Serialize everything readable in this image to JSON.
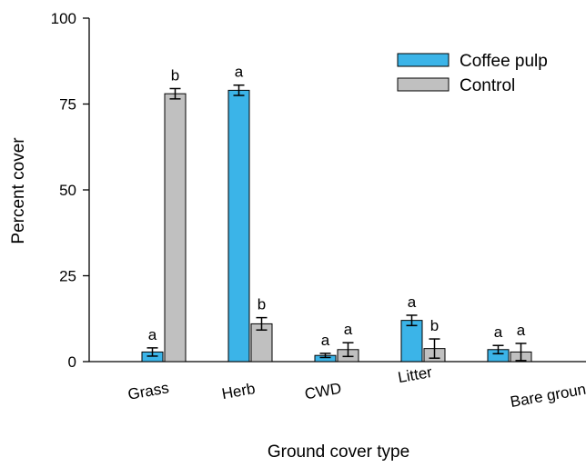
{
  "chart_data": {
    "type": "bar",
    "title": "",
    "xlabel": "Ground cover type",
    "ylabel": "Percent cover",
    "ylim": [
      0,
      100
    ],
    "yticks": [
      0,
      25,
      50,
      75,
      100
    ],
    "categories": [
      "Grass",
      "Herb",
      "CWD",
      "Litter",
      "Bare ground"
    ],
    "series": [
      {
        "name": "Coffee pulp",
        "color": "#3bb4e8",
        "values": [
          2.8,
          79,
          1.8,
          12,
          3.5
        ],
        "errors": [
          1.2,
          1.5,
          0.6,
          1.5,
          1.2
        ],
        "letters": [
          "a",
          "a",
          "a",
          "a",
          "a"
        ]
      },
      {
        "name": "Control",
        "color": "#c0c0c0",
        "values": [
          78,
          11,
          3.5,
          3.8,
          2.8
        ],
        "errors": [
          1.5,
          1.8,
          2.0,
          2.8,
          2.5
        ],
        "letters": [
          "b",
          "b",
          "a",
          "b",
          "a"
        ]
      }
    ],
    "legend_position": "top-right",
    "grid": false
  }
}
